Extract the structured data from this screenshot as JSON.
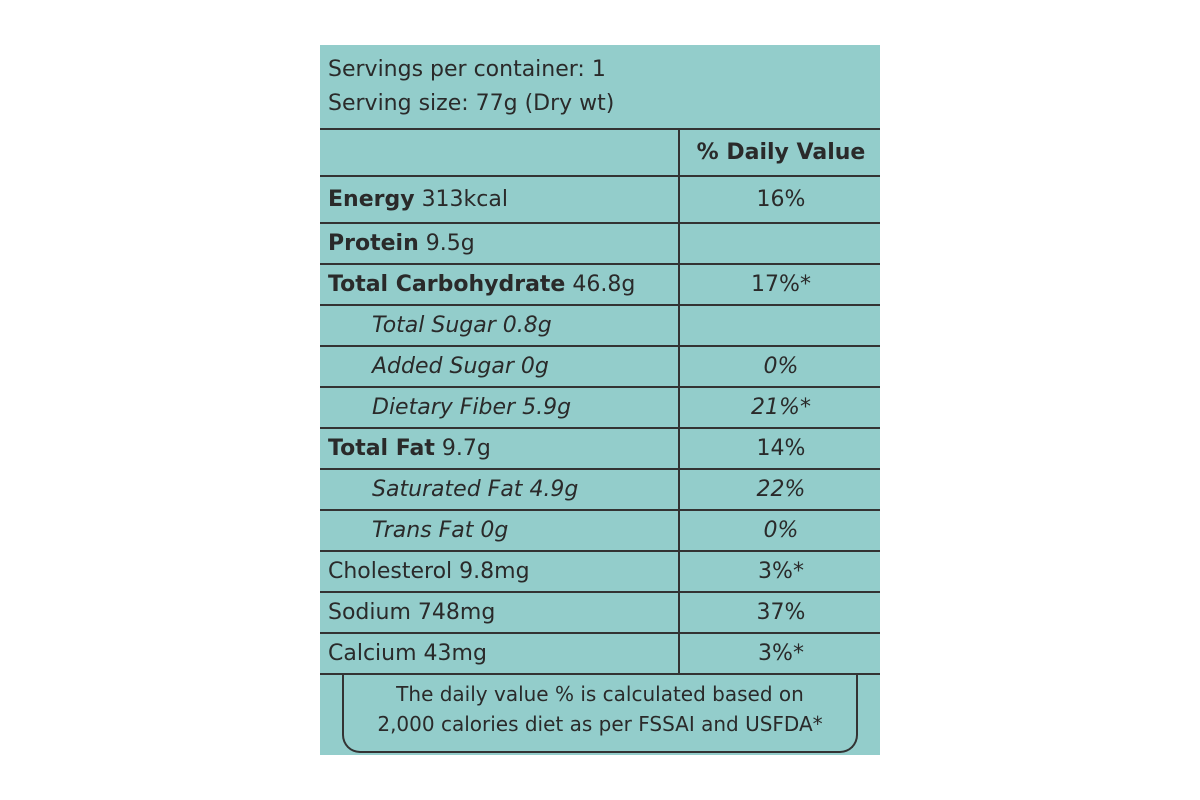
{
  "header": {
    "servings": "Servings per container: 1",
    "serving_size": "Serving size: 77g (Dry wt)"
  },
  "table": {
    "column_header": "% Daily Value",
    "rows": [
      {
        "nutrient": "Energy",
        "amount": "313kcal",
        "daily_value": "16%"
      },
      {
        "nutrient": "Protein",
        "amount": "9.5g"
      },
      {
        "nutrient": "Total Carbohydrate",
        "amount": "46.8g",
        "daily_value": "17%*"
      },
      {
        "nutrient": "Total Sugar",
        "amount": "0.8g"
      },
      {
        "nutrient": "Added Sugar",
        "amount": "0g",
        "daily_value": "0%"
      },
      {
        "nutrient": "Dietary Fiber",
        "amount": "5.9g",
        "daily_value": "21%*"
      },
      {
        "nutrient": "Total Fat",
        "amount": "9.7g",
        "daily_value": "14%"
      },
      {
        "nutrient": "Saturated Fat",
        "amount": "4.9g",
        "daily_value": "22%"
      },
      {
        "nutrient": "Trans Fat",
        "amount": "0g",
        "daily_value": "0%"
      },
      {
        "nutrient": "Cholesterol",
        "amount": "9.8mg",
        "daily_value": "3%*"
      },
      {
        "nutrient": "Sodium",
        "amount": "748mg",
        "daily_value": "37%"
      },
      {
        "nutrient": "Calcium",
        "amount": "43mg",
        "daily_value": "3%*"
      }
    ]
  },
  "footnote": {
    "line1": "The daily value % is calculated based on",
    "line2": "2,000 calories diet as per FSSAI and USFDA*"
  }
}
